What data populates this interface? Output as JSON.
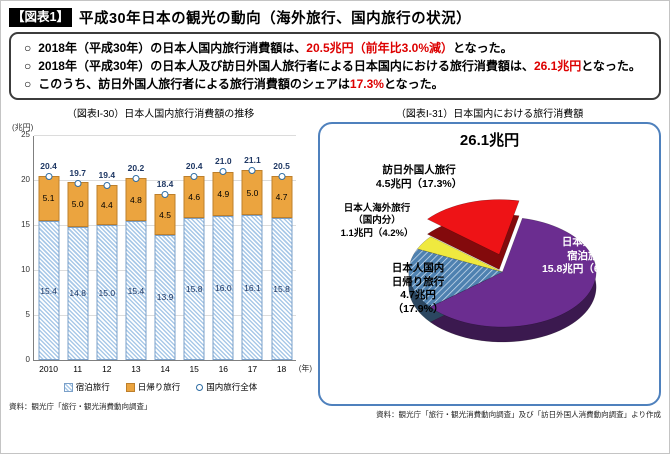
{
  "header": {
    "badge": "【図表1】",
    "title": "平成30年日本の観光の動向（海外旅行、国内旅行の状況）"
  },
  "summary": {
    "bullet": "○",
    "items": [
      {
        "pre": "2018年（平成30年）の日本人国内旅行消費額は、",
        "highlight": "20.5兆円（前年比3.0%減）",
        "post": "となった。"
      },
      {
        "pre": "2018年（平成30年）の日本人及び訪日外国人旅行者による日本国内における旅行消費額は、",
        "highlight": "26.1兆円",
        "post": "となった。"
      },
      {
        "pre": "このうち、訪日外国人旅行者による旅行消費額のシェアは",
        "highlight": "17.3%",
        "post": "となった。"
      }
    ]
  },
  "chart_data": [
    {
      "type": "bar",
      "title": "（図表Ⅰ-30）日本人国内旅行消費額の推移",
      "ylabel": "(兆円)",
      "x_suffix": "(年)",
      "ylim": [
        0,
        25
      ],
      "yticks": [
        0,
        5,
        10,
        15,
        20,
        25
      ],
      "grid": true,
      "legend_position": "bottom",
      "categories": [
        "2010",
        "11",
        "12",
        "13",
        "14",
        "15",
        "16",
        "17",
        "18"
      ],
      "series": [
        {
          "name": "宿泊旅行",
          "values": [
            15.4,
            14.8,
            15.0,
            15.4,
            13.9,
            15.8,
            16.0,
            16.1,
            15.8
          ]
        },
        {
          "name": "日帰り旅行",
          "values": [
            5.1,
            5.0,
            4.4,
            4.8,
            4.5,
            4.6,
            4.9,
            5.0,
            4.7
          ]
        },
        {
          "name": "国内旅行全体",
          "values": [
            20.4,
            19.7,
            19.4,
            20.2,
            18.4,
            20.4,
            21.0,
            21.1,
            20.5
          ]
        }
      ],
      "source": "資料：観光庁「旅行・観光消費動向調査」"
    },
    {
      "type": "pie",
      "title": "（図表Ⅰ-31）日本国内における旅行消費額",
      "total_label": "26.1兆円",
      "start_angle": 310,
      "order": [
        3,
        0,
        1,
        2
      ],
      "slices": [
        {
          "label": "日本人国内宿泊旅行",
          "value": 15.8,
          "pct": 60.6,
          "color": "#6b2d90"
        },
        {
          "label": "日本人国内日帰り旅行",
          "value": 4.7,
          "pct": 17.9,
          "color": "#4e81b0",
          "hatch": true
        },
        {
          "label": "日本人海外旅行（国内分）",
          "value": 1.1,
          "pct": 4.2,
          "color": "#efe93f"
        },
        {
          "label": "訪日外国人旅行",
          "value": 4.5,
          "pct": 17.3,
          "color": "#ee1316",
          "exploded": true
        }
      ],
      "labels": {
        "inbound": [
          "訪日外国人旅行",
          "4.5兆円（17.3%）"
        ],
        "overseas": [
          "日本人海外旅行",
          "（国内分）",
          "1.1兆円（4.2%）"
        ],
        "daytrip": [
          "日本人国内",
          "日帰り旅行",
          "4.7兆円",
          "（17.9%）"
        ],
        "overnight": [
          "日本人国内",
          "宿泊旅行",
          "15.8兆円（60.6%）"
        ]
      },
      "source": "資料：観光庁「旅行・観光消費動向調査」及び「訪日外国人消費動向調査」より作成"
    }
  ]
}
